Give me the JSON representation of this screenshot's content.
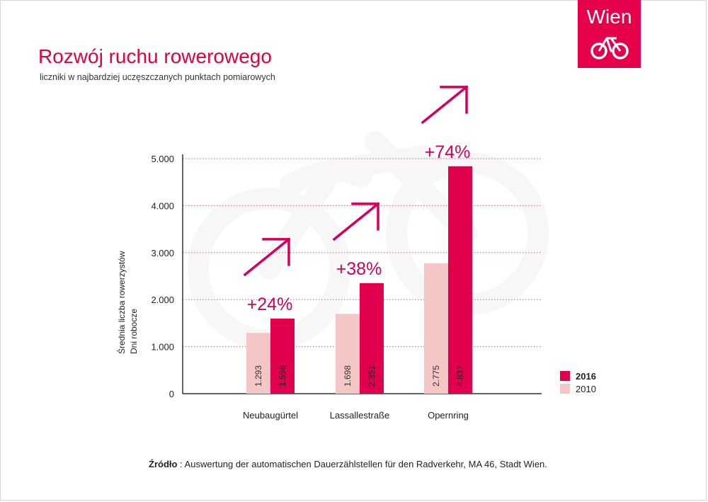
{
  "header": {
    "title": "Rozwój ruchu rowerowego",
    "subtitle": "liczniki w najbardziej uczęszczanych punktach pomiarowych"
  },
  "logo": {
    "text": "Wien",
    "icon": "bicycle-icon"
  },
  "source": {
    "label": "Źródło",
    "text": " : Auswertung der automatischen Dauerzählstellen für den Radverkehr, MA 46, Stadt Wien."
  },
  "colors": {
    "accent": "#e2003d",
    "bar_2016": "#e0004d",
    "bar_2010": "#f5c6c6"
  },
  "chart_data": {
    "type": "bar",
    "ylabel": [
      "Średnia liczba rowerzystów",
      "Dni robocze"
    ],
    "categories": [
      "Neubaugürtel",
      "Lassallestraße",
      "Opernring"
    ],
    "series": [
      {
        "name": "2010",
        "values": [
          1293,
          1698,
          2775
        ],
        "labels": [
          "1.293",
          "1.698",
          "2.775"
        ]
      },
      {
        "name": "2016",
        "values": [
          1598,
          2351,
          4837
        ],
        "labels": [
          "1.598",
          "2.351",
          "4.837"
        ]
      }
    ],
    "growth": [
      "+24%",
      "+38%",
      "+74%"
    ],
    "yticks": [
      0,
      1000,
      2000,
      3000,
      4000,
      5000
    ],
    "ytick_labels": [
      "0",
      "1.000",
      "2.000",
      "3.000",
      "4.000",
      "5.000"
    ],
    "ylim": [
      0,
      5000
    ],
    "grid": true,
    "legend": "bottom-right"
  }
}
